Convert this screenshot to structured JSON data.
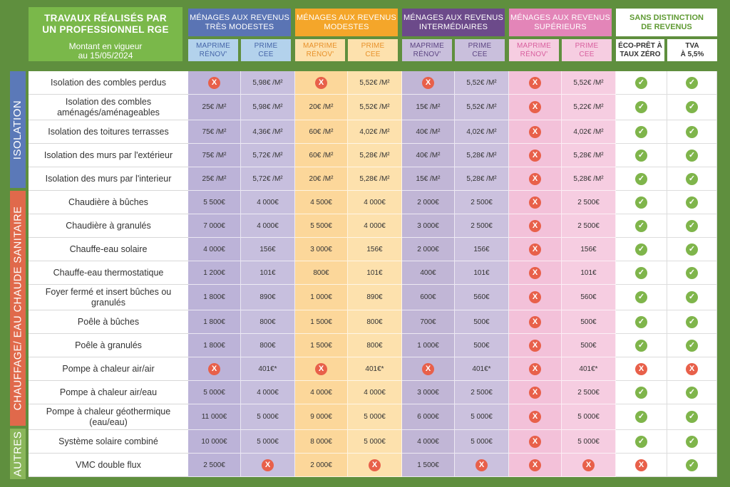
{
  "title": {
    "line1": "TRAVAUX RÉALISÉS PAR",
    "line2": "UN PROFESSIONNEL RGE",
    "sub1": "Montant en vigueur",
    "sub2": "au 15/05/2024"
  },
  "groups": [
    {
      "line1": "MÉNAGES AUX REVENUS",
      "line2": "TRÈS MODESTES",
      "color": "#5a74b4"
    },
    {
      "line1": "MÉNAGES AUX REVENUS",
      "line2": "MODESTES",
      "color": "#f4a62a"
    },
    {
      "line1": "MÉNAGES AUX REVENUS",
      "line2": "INTERMÉDIAIRES",
      "color": "#6c4a8a"
    },
    {
      "line1": "MÉNAGES AUX REVENUS",
      "line2": "SUPÉRIEURS",
      "color": "#e385b8"
    },
    {
      "line1": "SANS DISTINCTION",
      "line2": "DE REVENUS",
      "color": "#ffffff"
    }
  ],
  "subheaders": [
    {
      "line1": "MAPRIME",
      "line2": "RÉNOV'"
    },
    {
      "line1": "PRIME",
      "line2": "CEE"
    },
    {
      "line1": "MAPRIME",
      "line2": "RÉNOV'"
    },
    {
      "line1": "PRIME",
      "line2": "CEE"
    },
    {
      "line1": "MAPRIME",
      "line2": "RÉNOV'"
    },
    {
      "line1": "PRIME",
      "line2": "CEE"
    },
    {
      "line1": "MAPRIME",
      "line2": "RÉNOV'"
    },
    {
      "line1": "PRIME",
      "line2": "CEE"
    },
    {
      "line1": "ÉCO-PRÊT À",
      "line2": "TAUX ZÉRO"
    },
    {
      "line1": "TVA",
      "line2": "À 5,5%"
    }
  ],
  "sections": [
    {
      "label": "ISOLATION",
      "color": "#5b79b8"
    },
    {
      "label": "CHAUFFAGE/ EAU CHAUDE SANITAIRE",
      "color": "#e0694b"
    },
    {
      "label": "AUTRES",
      "color": "#8ab65a"
    }
  ],
  "rows": [
    {
      "label": "Isolation des combles perdus",
      "cells": [
        "X",
        "5,98€ /M²",
        "X",
        "5,52€ /M²",
        "X",
        "5,52€ /M²",
        "X",
        "5,52€ /M²",
        "✓",
        "✓"
      ]
    },
    {
      "label": "Isolation des combles aménagés/aménageables",
      "cells": [
        "25€ /M²",
        "5,98€ /M²",
        "20€ /M²",
        "5,52€ /M²",
        "15€ /M²",
        "5,52€ /M²",
        "X",
        "5,22€ /M²",
        "✓",
        "✓"
      ]
    },
    {
      "label": "Isolation des toitures terrasses",
      "cells": [
        "75€ /M²",
        "4,36€ /M²",
        "60€ /M²",
        "4,02€ /M²",
        "40€ /M²",
        "4,02€ /M²",
        "X",
        "4,02€ /M²",
        "✓",
        "✓"
      ]
    },
    {
      "label": "Isolation des murs par l'extérieur",
      "cells": [
        "75€ /M²",
        "5,72€ /M²",
        "60€ /M²",
        "5,28€ /M²",
        "40€ /M²",
        "5,28€ /M²",
        "X",
        "5,28€ /M²",
        "✓",
        "✓"
      ]
    },
    {
      "label": "Isolation des murs par l'interieur",
      "cells": [
        "25€ /M²",
        "5,72€ /M²",
        "20€ /M²",
        "5,28€ /M²",
        "15€ /M²",
        "5,28€ /M²",
        "X",
        "5,28€ /M²",
        "✓",
        "✓"
      ]
    },
    {
      "label": "Chaudière à bûches",
      "cells": [
        "5 500€",
        "4 000€",
        "4 500€",
        "4 000€",
        "2 000€",
        "2 500€",
        "X",
        "2 500€",
        "✓",
        "✓"
      ]
    },
    {
      "label": "Chaudière à granulés",
      "cells": [
        "7 000€",
        "4 000€",
        "5 500€",
        "4 000€",
        "3 000€",
        "2 500€",
        "X",
        "2 500€",
        "✓",
        "✓"
      ]
    },
    {
      "label": "Chauffe-eau solaire",
      "cells": [
        "4 000€",
        "156€",
        "3 000€",
        "156€",
        "2 000€",
        "156€",
        "X",
        "156€",
        "✓",
        "✓"
      ]
    },
    {
      "label": "Chauffe-eau thermostatique",
      "cells": [
        "1 200€",
        "101€",
        "800€",
        "101€",
        "400€",
        "101€",
        "X",
        "101€",
        "✓",
        "✓"
      ]
    },
    {
      "label": "Foyer fermé et insert bûches ou granulés",
      "cells": [
        "1 800€",
        "890€",
        "1 000€",
        "890€",
        "600€",
        "560€",
        "X",
        "560€",
        "✓",
        "✓"
      ]
    },
    {
      "label": "Poêle à bûches",
      "cells": [
        "1 800€",
        "800€",
        "1 500€",
        "800€",
        "700€",
        "500€",
        "X",
        "500€",
        "✓",
        "✓"
      ]
    },
    {
      "label": "Poêle à granulés",
      "cells": [
        "1 800€",
        "800€",
        "1 500€",
        "800€",
        "1 000€",
        "500€",
        "X",
        "500€",
        "✓",
        "✓"
      ]
    },
    {
      "label": "Pompe à chaleur air/air",
      "cells": [
        "X",
        "401€*",
        "X",
        "401€*",
        "X",
        "401€*",
        "X",
        "401€*",
        "X",
        "X"
      ]
    },
    {
      "label": "Pompe à chaleur air/eau",
      "cells": [
        "5 000€",
        "4 000€",
        "4 000€",
        "4 000€",
        "3 000€",
        "2 500€",
        "X",
        "2 500€",
        "✓",
        "✓"
      ]
    },
    {
      "label": "Pompe à chaleur géothermique (eau/eau)",
      "cells": [
        "11 000€",
        "5 000€",
        "9 000€",
        "5 000€",
        "6 000€",
        "5 000€",
        "X",
        "5 000€",
        "✓",
        "✓"
      ]
    },
    {
      "label": "Système solaire combiné",
      "cells": [
        "10 000€",
        "5 000€",
        "8 000€",
        "5 000€",
        "4 000€",
        "5 000€",
        "X",
        "5 000€",
        "✓",
        "✓"
      ]
    },
    {
      "label": "VMC double flux",
      "cells": [
        "2 500€",
        "X",
        "2 000€",
        "X",
        "1 500€",
        "X",
        "X",
        "X",
        "X",
        "✓"
      ]
    }
  ]
}
